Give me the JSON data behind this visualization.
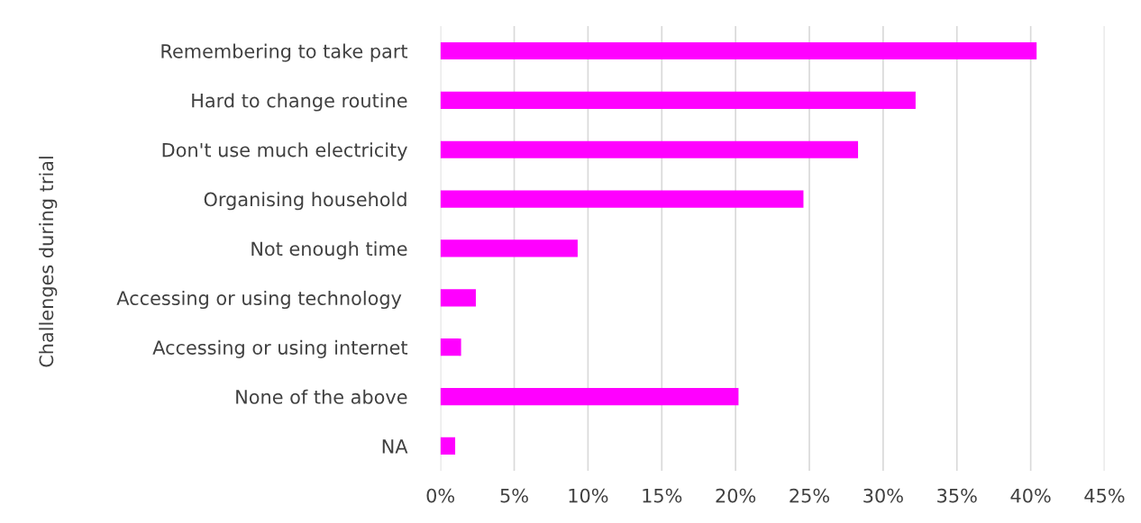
{
  "chart_data": {
    "type": "bar",
    "orientation": "horizontal",
    "ylabel": "Challenges during trial",
    "categories": [
      "Remembering to take part",
      "Hard to change routine",
      "Don't use much electricity",
      "Organising household",
      "Not enough time",
      "Accessing or using technology ",
      "Accessing or using internet",
      "None of the above",
      "NA"
    ],
    "values": [
      40.4,
      32.2,
      28.3,
      24.6,
      9.3,
      2.4,
      1.4,
      20.2,
      1.0
    ],
    "color": "#ff00ff",
    "xlim": [
      0,
      45
    ],
    "xticks": [
      {
        "value": 0,
        "label": "0%"
      },
      {
        "value": 5,
        "label": "5%"
      },
      {
        "value": 10,
        "label": "10%"
      },
      {
        "value": 15,
        "label": "15%"
      },
      {
        "value": 20,
        "label": "20%"
      },
      {
        "value": 25,
        "label": "25%"
      },
      {
        "value": 30,
        "label": "30%"
      },
      {
        "value": 35,
        "label": "35%"
      },
      {
        "value": 40,
        "label": "40%"
      },
      {
        "value": 45,
        "label": "45%"
      }
    ],
    "grid": "x"
  }
}
